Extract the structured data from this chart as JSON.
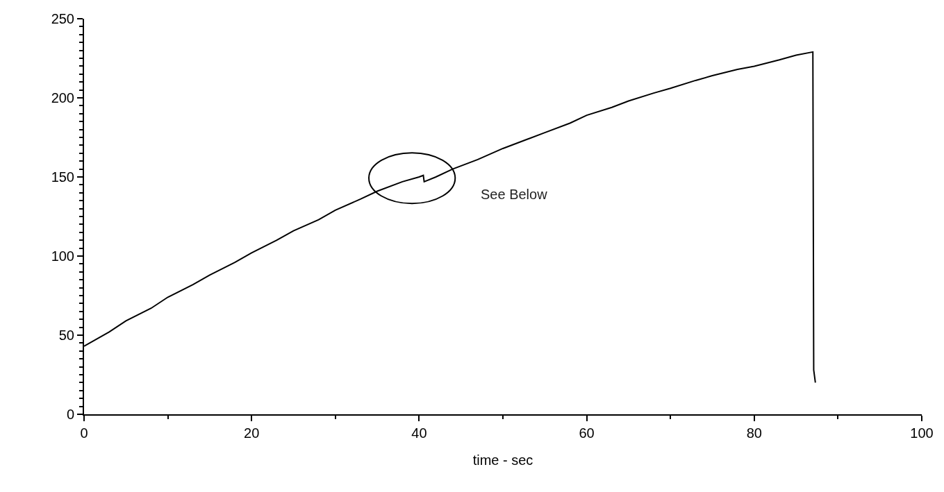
{
  "chart_data": {
    "type": "line",
    "xlabel": "time - sec",
    "x": [
      0,
      3,
      5,
      8,
      10,
      13,
      15,
      18,
      20,
      23,
      25,
      28,
      30,
      33,
      35,
      38,
      40,
      40.5,
      40.6,
      42,
      44,
      47,
      50,
      53,
      55,
      58,
      60,
      63,
      65,
      68,
      70,
      73,
      75,
      78,
      80,
      83,
      85,
      87,
      87.1,
      87.3
    ],
    "series": [
      {
        "color": "#000000",
        "values": [
          43,
          52,
          59,
          67,
          74,
          82,
          88,
          96,
          102,
          110,
          116,
          123,
          129,
          136,
          141,
          147,
          150,
          151,
          147,
          150,
          155,
          161,
          168,
          174,
          178,
          184,
          189,
          194,
          198,
          203,
          206,
          211,
          214,
          218,
          220,
          224,
          227,
          229,
          28,
          20
        ]
      }
    ],
    "xlim": [
      0,
      100
    ],
    "xticks": [
      0,
      20,
      40,
      60,
      80,
      100
    ],
    "ylim": [
      0,
      250
    ],
    "yticks": [
      0,
      50,
      100,
      150,
      200,
      250
    ],
    "annotations": [
      "See Below"
    ],
    "marker": "none",
    "line_style": "solid"
  }
}
